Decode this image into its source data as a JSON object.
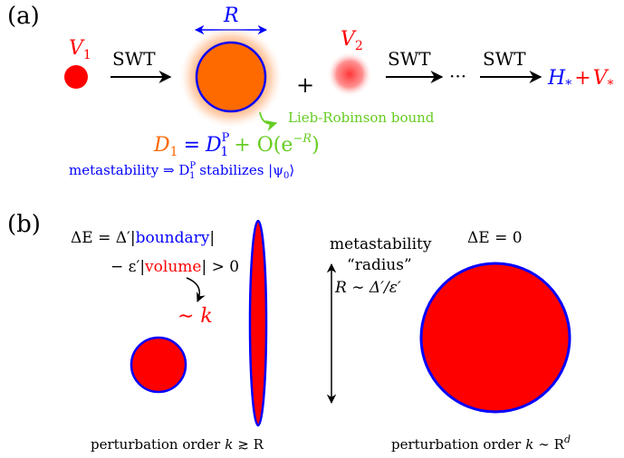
{
  "panel_a": {
    "label": "(a)",
    "v1": "V",
    "v1_sub": "1",
    "v2": "V",
    "v2_sub": "2",
    "swt": "SWT",
    "radius": "R",
    "plus": "+",
    "dots": "···",
    "h_star": "H",
    "star_sub": "*",
    "plus_red": "+",
    "v_star": "V",
    "lieb_robinson": "Lieb-Robinson bound",
    "d1_lhs": "D",
    "d1_lhs_sub": "1",
    "d1_eq": "=",
    "d1_rhs": "D",
    "d1_rhs_sup": "P",
    "d1_rhs_sub": "1",
    "d1_tail": "+ O(e",
    "d1_exp": "−R",
    "d1_close": ")",
    "metastability_text": "metastability ⇒ D",
    "meta_sup": "P",
    "meta_sub": "1",
    "meta_tail": " stabilizes |ψ",
    "meta_psi_sub": "0",
    "meta_close": "⟩"
  },
  "panel_b": {
    "label": "(b)",
    "de_line1_a": "ΔE = Δ′|",
    "de_line1_boundary": "boundary",
    "de_line1_b": "|",
    "de_line2_a": "− ε′|",
    "de_line2_volume": "volume",
    "de_line2_b": "| > 0",
    "sim_k": "∼ k",
    "meta_word": "metastability",
    "radius_word": "“radius”",
    "radius_rel": "R ∼ Δ′/ε′",
    "de_zero": "ΔE = 0",
    "pert_left": "perturbation order",
    "pert_left_k": "k",
    "pert_left_rel": "≳ R",
    "pert_right": "perturbation order",
    "pert_right_k": "k",
    "pert_right_rel": "∼ R",
    "pert_right_sup": "d"
  },
  "colors": {
    "red": "#ff0000",
    "blue": "#0000ff",
    "orange": "#ff6600",
    "green": "#66cc22",
    "black": "#000000"
  }
}
